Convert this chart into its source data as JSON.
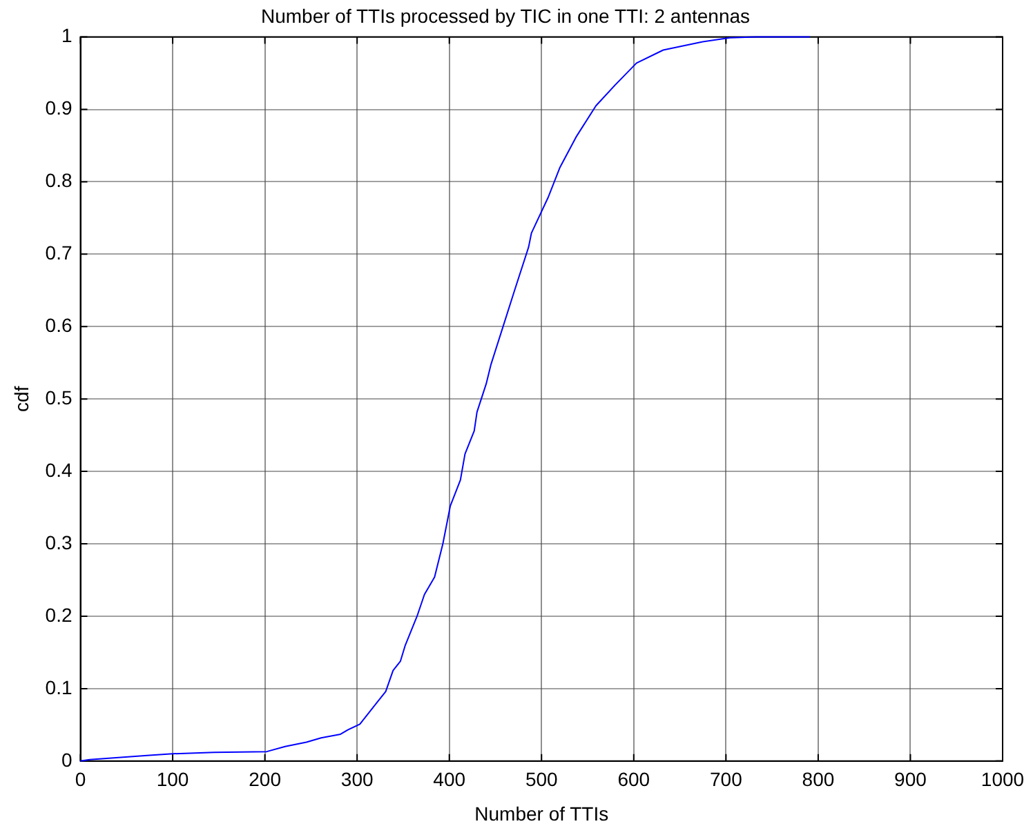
{
  "chart_data": {
    "type": "line",
    "title": "Number of TTIs processed by TIC in one TTI: 2 antennas",
    "xlabel": "Number of TTIs",
    "ylabel": "cdf",
    "x": [
      0,
      10,
      75,
      100,
      145,
      202,
      222,
      245,
      261,
      282,
      290,
      303,
      321,
      331,
      339,
      347,
      352,
      365,
      373,
      384,
      393,
      401,
      412,
      417,
      427,
      430,
      440,
      445,
      458,
      471,
      486,
      489,
      507,
      520,
      538,
      559,
      580,
      603,
      632,
      673,
      704,
      732,
      791
    ],
    "series": [
      {
        "color": "#0000ff",
        "values": [
          0,
          0.002,
          0.008,
          0.01,
          0.012,
          0.013,
          0.02,
          0.026,
          0.032,
          0.037,
          0.043,
          0.051,
          0.08,
          0.096,
          0.125,
          0.138,
          0.159,
          0.2,
          0.23,
          0.254,
          0.3,
          0.352,
          0.388,
          0.424,
          0.456,
          0.482,
          0.521,
          0.547,
          0.599,
          0.651,
          0.71,
          0.729,
          0.778,
          0.82,
          0.863,
          0.905,
          0.934,
          0.964,
          0.982,
          0.993,
          0.999,
          1,
          1
        ]
      }
    ],
    "xlim": [
      0,
      1000
    ],
    "xticks": [
      0,
      100,
      200,
      300,
      400,
      500,
      600,
      700,
      800,
      900,
      1000
    ],
    "ylim": [
      0,
      1
    ],
    "yticks": [
      0,
      0.1,
      0.2,
      0.3,
      0.4,
      0.5,
      0.6,
      0.7,
      0.8,
      0.9,
      1
    ],
    "grid": true,
    "legend": false,
    "marker": "none",
    "line_style": "solid"
  }
}
